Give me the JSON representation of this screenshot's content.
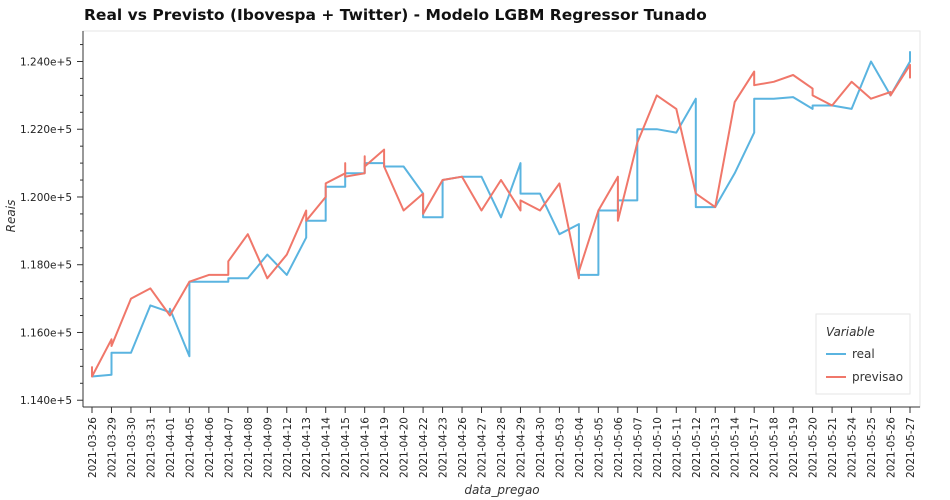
{
  "chart_data": {
    "type": "line",
    "title": "Real vs Previsto (Ibovespa + Twitter) - Modelo LGBM Regressor Tunado",
    "xlabel": "data_pregao",
    "ylabel": "Reais",
    "ylim": [
      113800,
      124900
    ],
    "yticks": [
      114000,
      116000,
      118000,
      120000,
      122000,
      124000
    ],
    "ytick_labels": [
      "1.140e+5",
      "1.160e+5",
      "1.180e+5",
      "1.200e+5",
      "1.220e+5",
      "1.240e+5"
    ],
    "categories": [
      "2021-03-26",
      "2021-03-29",
      "2021-03-30",
      "2021-03-31",
      "2021-04-01",
      "2021-04-05",
      "2021-04-06",
      "2021-04-07",
      "2021-04-08",
      "2021-04-09",
      "2021-04-12",
      "2021-04-13",
      "2021-04-14",
      "2021-04-15",
      "2021-04-16",
      "2021-04-19",
      "2021-04-20",
      "2021-04-22",
      "2021-04-23",
      "2021-04-26",
      "2021-04-27",
      "2021-04-28",
      "2021-04-29",
      "2021-04-30",
      "2021-05-03",
      "2021-05-04",
      "2021-05-05",
      "2021-05-06",
      "2021-05-07",
      "2021-05-10",
      "2021-05-11",
      "2021-05-12",
      "2021-05-13",
      "2021-05-14",
      "2021-05-17",
      "2021-05-18",
      "2021-05-19",
      "2021-05-20",
      "2021-05-21",
      "2021-05-24",
      "2021-05-25",
      "2021-05-26",
      "2021-05-27"
    ],
    "grid": false,
    "legend": {
      "title": "Variable",
      "position": "bottom-right"
    },
    "series": [
      {
        "name": "real",
        "color": "#5ab4e0",
        "points": [
          [
            0,
            114700
          ],
          [
            1,
            114750
          ],
          [
            1,
            115400
          ],
          [
            2,
            115400
          ],
          [
            3,
            116800
          ],
          [
            4,
            116600
          ],
          [
            4,
            116700
          ],
          [
            5,
            115300
          ],
          [
            5,
            117500
          ],
          [
            6,
            117500
          ],
          [
            7,
            117500
          ],
          [
            7,
            117600
          ],
          [
            8,
            117600
          ],
          [
            9,
            118300
          ],
          [
            10,
            117700
          ],
          [
            11,
            118800
          ],
          [
            11,
            119300
          ],
          [
            12,
            119300
          ],
          [
            12,
            120300
          ],
          [
            13,
            120300
          ],
          [
            13,
            120700
          ],
          [
            14,
            120700
          ],
          [
            14,
            121000
          ],
          [
            15,
            121000
          ],
          [
            15,
            120900
          ],
          [
            16,
            120900
          ],
          [
            17,
            120100
          ],
          [
            17,
            119400
          ],
          [
            18,
            119400
          ],
          [
            18,
            120500
          ],
          [
            19,
            120600
          ],
          [
            20,
            120600
          ],
          [
            21,
            119400
          ],
          [
            22,
            121000
          ],
          [
            22,
            120100
          ],
          [
            23,
            120100
          ],
          [
            24,
            118900
          ],
          [
            25,
            119200
          ],
          [
            25,
            117700
          ],
          [
            26,
            117700
          ],
          [
            26,
            119600
          ],
          [
            27,
            119600
          ],
          [
            27,
            119900
          ],
          [
            28,
            119900
          ],
          [
            28,
            122000
          ],
          [
            29,
            122000
          ],
          [
            30,
            121900
          ],
          [
            31,
            122900
          ],
          [
            31,
            119700
          ],
          [
            32,
            119700
          ],
          [
            33,
            120700
          ],
          [
            34,
            121900
          ],
          [
            34,
            122900
          ],
          [
            35,
            122900
          ],
          [
            36,
            122950
          ],
          [
            37,
            122600
          ],
          [
            37,
            122700
          ],
          [
            38,
            122700
          ],
          [
            39,
            122600
          ],
          [
            40,
            124000
          ],
          [
            41,
            123000
          ],
          [
            42,
            124000
          ],
          [
            42,
            124300
          ]
        ]
      },
      {
        "name": "previsao",
        "color": "#f0776a",
        "points": [
          [
            0,
            115000
          ],
          [
            0,
            114700
          ],
          [
            1,
            115800
          ],
          [
            1,
            115600
          ],
          [
            2,
            117000
          ],
          [
            3,
            117300
          ],
          [
            4,
            116500
          ],
          [
            5,
            117500
          ],
          [
            6,
            117700
          ],
          [
            7,
            117700
          ],
          [
            7,
            118100
          ],
          [
            8,
            118900
          ],
          [
            9,
            117600
          ],
          [
            10,
            118300
          ],
          [
            11,
            119600
          ],
          [
            11,
            119300
          ],
          [
            12,
            120000
          ],
          [
            12,
            120400
          ],
          [
            13,
            120700
          ],
          [
            13,
            121000
          ],
          [
            13,
            120600
          ],
          [
            14,
            120700
          ],
          [
            14,
            121200
          ],
          [
            14,
            120900
          ],
          [
            15,
            121400
          ],
          [
            15,
            120900
          ],
          [
            16,
            119600
          ],
          [
            17,
            120100
          ],
          [
            17,
            119500
          ],
          [
            18,
            120500
          ],
          [
            19,
            120600
          ],
          [
            20,
            119600
          ],
          [
            21,
            120500
          ],
          [
            22,
            119600
          ],
          [
            22,
            119900
          ],
          [
            23,
            119600
          ],
          [
            24,
            120400
          ],
          [
            25,
            117600
          ],
          [
            25,
            117800
          ],
          [
            26,
            119600
          ],
          [
            27,
            120600
          ],
          [
            27,
            119300
          ],
          [
            28,
            121600
          ],
          [
            29,
            123000
          ],
          [
            30,
            122600
          ],
          [
            31,
            120100
          ],
          [
            32,
            119700
          ],
          [
            33,
            122800
          ],
          [
            34,
            123700
          ],
          [
            34,
            123300
          ],
          [
            35,
            123400
          ],
          [
            36,
            123600
          ],
          [
            37,
            123200
          ],
          [
            37,
            123000
          ],
          [
            38,
            122700
          ],
          [
            39,
            123400
          ],
          [
            40,
            122900
          ],
          [
            41,
            123100
          ],
          [
            41,
            123000
          ],
          [
            42,
            123900
          ],
          [
            42,
            123500
          ]
        ]
      }
    ]
  }
}
